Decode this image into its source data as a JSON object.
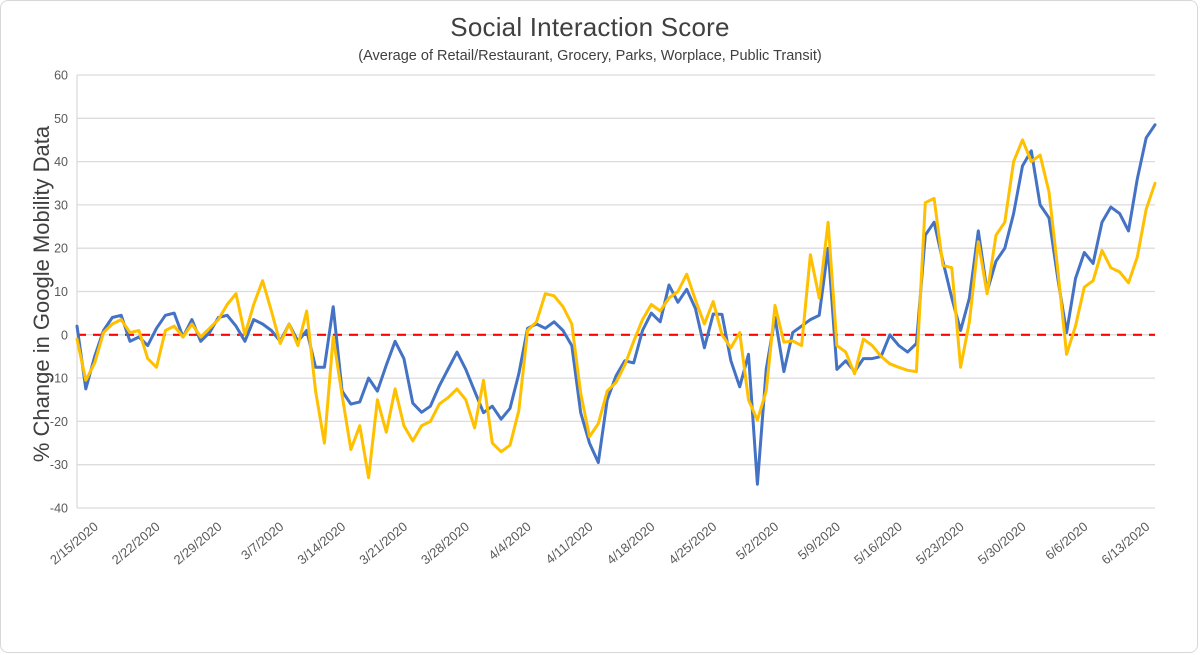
{
  "title": "Social Interaction Score",
  "subtitle": "(Average of Retail/Restaurant, Grocery, Parks, Worplace, Public Transit)",
  "y_axis_title": "% Change in Google Mobility Data",
  "colors": {
    "background": "#ffffff",
    "gridline": "#dcdcdc",
    "tick_text": "#595959",
    "title_text": "#404040",
    "blue_series": "#4472c4",
    "gold_series": "#ffc000",
    "zero_line_red": "#ff0000"
  },
  "chart_data": {
    "type": "line",
    "title": "Social Interaction Score",
    "subtitle": "(Average of Retail/Restaurant, Grocery, Parks, Worplace, Public Transit)",
    "xlabel": "",
    "ylabel": "% Change in Google Mobility Data",
    "ylim": [
      -40,
      60
    ],
    "y_ticks": [
      60,
      50,
      40,
      30,
      20,
      10,
      0,
      -10,
      -20,
      -30,
      -40
    ],
    "grid": "horizontal",
    "legend_position": "none",
    "x_tick_labels": [
      "2/15/2020",
      "2/22/2020",
      "2/29/2020",
      "3/7/2020",
      "3/14/2020",
      "3/21/2020",
      "3/28/2020",
      "4/4/2020",
      "4/11/2020",
      "4/18/2020",
      "4/25/2020",
      "5/2/2020",
      "5/9/2020",
      "5/16/2020",
      "5/23/2020",
      "5/30/2020",
      "6/6/2020",
      "6/13/2020"
    ],
    "zero_line": {
      "y": 0,
      "color": "#ff0000",
      "style": "dashed"
    },
    "dates": [
      "2/15/2020",
      "2/16/2020",
      "2/17/2020",
      "2/18/2020",
      "2/19/2020",
      "2/20/2020",
      "2/21/2020",
      "2/22/2020",
      "2/23/2020",
      "2/24/2020",
      "2/25/2020",
      "2/26/2020",
      "2/27/2020",
      "2/28/2020",
      "2/29/2020",
      "3/1/2020",
      "3/2/2020",
      "3/3/2020",
      "3/4/2020",
      "3/5/2020",
      "3/6/2020",
      "3/7/2020",
      "3/8/2020",
      "3/9/2020",
      "3/10/2020",
      "3/11/2020",
      "3/12/2020",
      "3/13/2020",
      "3/14/2020",
      "3/15/2020",
      "3/16/2020",
      "3/17/2020",
      "3/18/2020",
      "3/19/2020",
      "3/20/2020",
      "3/21/2020",
      "3/22/2020",
      "3/23/2020",
      "3/24/2020",
      "3/25/2020",
      "3/26/2020",
      "3/27/2020",
      "3/28/2020",
      "3/29/2020",
      "3/30/2020",
      "3/31/2020",
      "4/1/2020",
      "4/2/2020",
      "4/3/2020",
      "4/4/2020",
      "4/5/2020",
      "4/6/2020",
      "4/7/2020",
      "4/8/2020",
      "4/9/2020",
      "4/10/2020",
      "4/11/2020",
      "4/12/2020",
      "4/13/2020",
      "4/14/2020",
      "4/15/2020",
      "4/16/2020",
      "4/17/2020",
      "4/18/2020",
      "4/19/2020",
      "4/20/2020",
      "4/21/2020",
      "4/22/2020",
      "4/23/2020",
      "4/24/2020",
      "4/25/2020",
      "4/26/2020",
      "4/27/2020",
      "4/28/2020",
      "4/29/2020",
      "4/30/2020",
      "5/1/2020",
      "5/2/2020",
      "5/3/2020",
      "5/4/2020",
      "5/5/2020",
      "5/6/2020",
      "5/7/2020",
      "5/8/2020",
      "5/9/2020",
      "5/10/2020",
      "5/11/2020",
      "5/12/2020",
      "5/13/2020",
      "5/14/2020",
      "5/15/2020",
      "5/16/2020",
      "5/17/2020",
      "5/18/2020",
      "5/19/2020",
      "5/20/2020",
      "5/21/2020",
      "5/22/2020",
      "5/23/2020",
      "5/24/2020",
      "5/25/2020",
      "5/26/2020",
      "5/27/2020",
      "5/28/2020",
      "5/29/2020",
      "5/30/2020",
      "5/31/2020",
      "6/1/2020",
      "6/2/2020",
      "6/3/2020",
      "6/4/2020",
      "6/5/2020",
      "6/6/2020",
      "6/7/2020",
      "6/8/2020",
      "6/9/2020",
      "6/10/2020",
      "6/11/2020",
      "6/12/2020",
      "6/13/2020",
      "6/14/2020",
      "6/15/2020",
      "6/16/2020"
    ],
    "series": [
      {
        "id": "blue-series",
        "name": "Social Interaction Score (blue line)",
        "color": "#4472c4",
        "values": [
          2,
          -12.5,
          -5,
          1,
          4,
          4.5,
          -1.5,
          -0.5,
          -2.5,
          1.5,
          4.5,
          5,
          -0.5,
          3.5,
          -1.5,
          0.5,
          4,
          4.5,
          2,
          -1.5,
          3.5,
          2.5,
          1,
          -1.5,
          2.5,
          -1.5,
          1,
          -7.5,
          -7.5,
          6.5,
          -13,
          -16,
          -15.5,
          -10,
          -13,
          -7,
          -1.5,
          -5.5,
          -15.8,
          -17.9,
          -16.5,
          -11.8,
          -7.9,
          -4,
          -8,
          -13,
          -18,
          -16.5,
          -19.5,
          -17,
          -9,
          1.5,
          2.5,
          1.5,
          3,
          1,
          -2.5,
          -18,
          -25,
          -29.5,
          -15,
          -9.5,
          -6,
          -6.5,
          1,
          5,
          3,
          11.5,
          7.5,
          10.5,
          6,
          -3,
          4.8,
          4.7,
          -6,
          -12,
          -4.5,
          -34.5,
          -8,
          4,
          -8.5,
          0.5,
          2,
          3.5,
          4.5,
          20,
          -8,
          -6,
          -8.5,
          -5.5,
          -5.5,
          -5,
          0,
          -2.5,
          -4,
          -2,
          23,
          26,
          17,
          8.5,
          1,
          8.5,
          24,
          10,
          17,
          20,
          28,
          39,
          42.5,
          30,
          27,
          13,
          0.5,
          13,
          19,
          16.5,
          26,
          29.5,
          28,
          24,
          36,
          45.5,
          48.5
        ]
      },
      {
        "id": "gold-series",
        "name": "Social Interaction Score (gold line)",
        "color": "#ffc000",
        "values": [
          -1,
          -10.5,
          -6.5,
          0.5,
          2.5,
          3.5,
          0.5,
          1,
          -5.5,
          -7.5,
          1,
          2,
          -0.5,
          2.5,
          -0.5,
          1.5,
          3.5,
          7,
          9.5,
          0,
          7,
          12.5,
          5.5,
          -2,
          2.5,
          -2.5,
          5.5,
          -13,
          -25,
          -0.5,
          -14,
          -26.5,
          -21,
          -33,
          -15,
          -22.5,
          -12.5,
          -21,
          -24.5,
          -21,
          -20,
          -16,
          -14.5,
          -12.5,
          -15,
          -21.5,
          -10.5,
          -25,
          -27,
          -25.5,
          -17.5,
          1,
          3,
          9.5,
          9,
          6.5,
          2.5,
          -13.5,
          -23.5,
          -20.5,
          -13,
          -11,
          -7,
          -1.5,
          3.5,
          7,
          5.5,
          8.5,
          10,
          14,
          8,
          2.5,
          7.7,
          0,
          -3,
          0.5,
          -15,
          -19.7,
          -13,
          6.8,
          -1.7,
          -1.4,
          -2.5,
          18.5,
          8.5,
          26,
          -2.5,
          -4,
          -9,
          -1,
          -2.5,
          -5,
          -6.7,
          -7.5,
          -8.2,
          -8.5,
          30.5,
          31.5,
          16,
          15.5,
          -7.5,
          3,
          21.5,
          9.5,
          23,
          26,
          40,
          45,
          40,
          41.5,
          33,
          15,
          -4.5,
          2,
          11,
          12.5,
          19.5,
          15.5,
          14.5,
          12,
          18,
          29,
          35
        ]
      }
    ]
  }
}
